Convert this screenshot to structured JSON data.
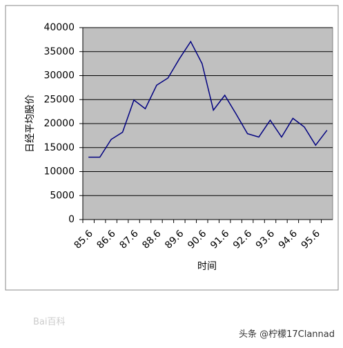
{
  "chart_data": {
    "type": "line",
    "ylabel": "日经平均股价",
    "xlabel": "时间",
    "categories": [
      "85.6",
      null,
      "86.6",
      null,
      "87.6",
      null,
      "88.6",
      null,
      "89.6",
      null,
      "90.6",
      null,
      "91.6",
      null,
      "92.6",
      null,
      "93.6",
      null,
      "94.6",
      null,
      "95.6",
      null
    ],
    "series": [
      {
        "name": "日经平均股价",
        "color": "#000080",
        "values": [
          13000,
          13000,
          16700,
          18200,
          24900,
          23100,
          28000,
          29500,
          33500,
          37100,
          32500,
          22800,
          25900,
          22000,
          17900,
          17200,
          20700,
          17200,
          21100,
          19300,
          15500,
          18600
        ]
      }
    ],
    "ylim": [
      0,
      40000
    ],
    "yticks": [
      0,
      5000,
      10000,
      15000,
      20000,
      25000,
      30000,
      35000,
      40000
    ],
    "grid": true
  },
  "watermarks": {
    "left": "Bai百科",
    "right": "头条 @柠檬17Clannad"
  }
}
